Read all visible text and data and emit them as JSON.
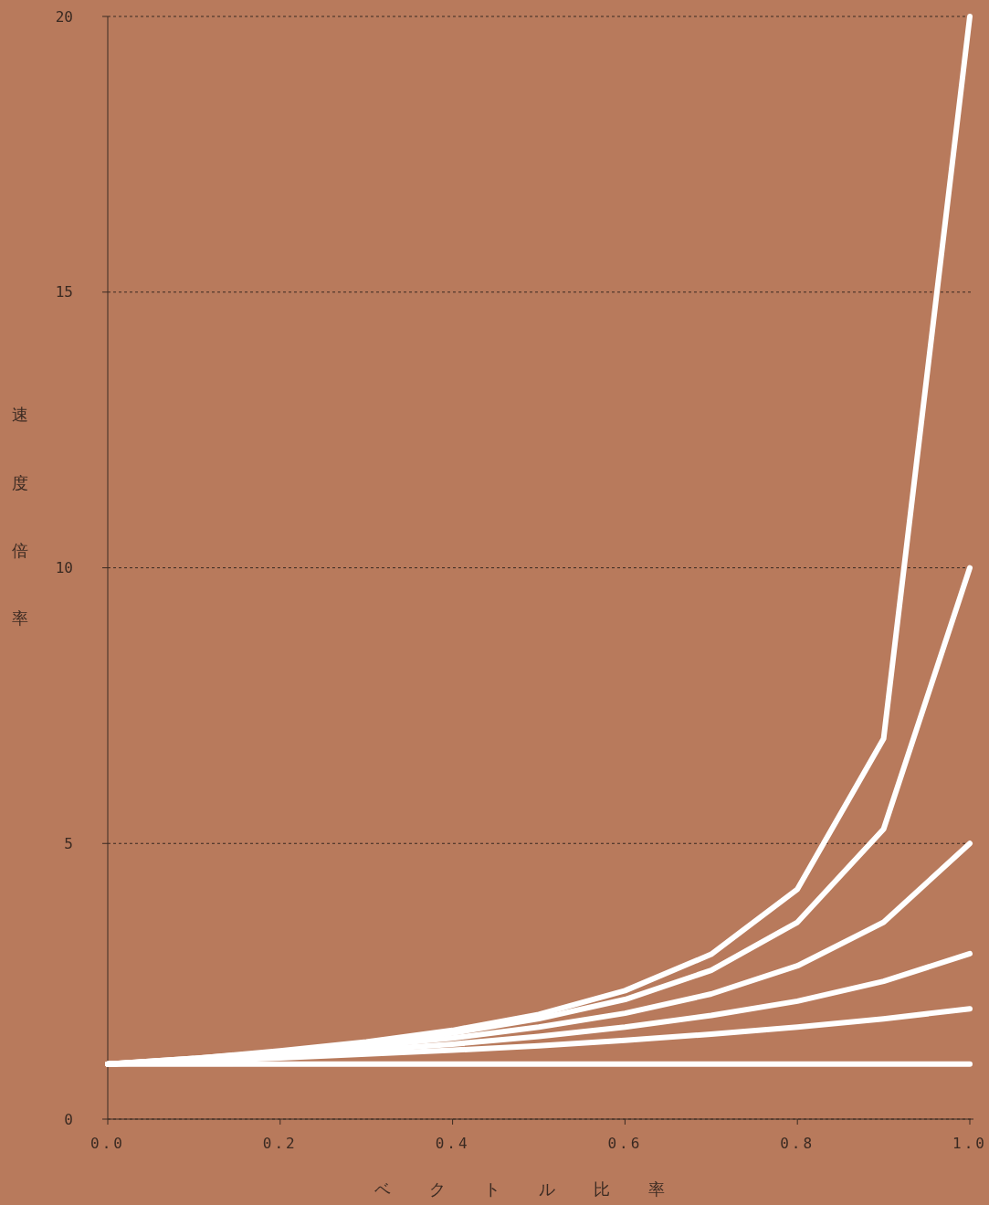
{
  "chart_data": {
    "type": "line",
    "xlabel": "ベクトル比率",
    "ylabel": "速度倍率",
    "x": [
      0,
      0.1,
      0.2,
      0.3,
      0.4,
      0.5,
      0.6,
      0.7,
      0.8,
      0.9,
      1.0
    ],
    "series": [
      {
        "color": "#ffffff",
        "values": [
          1,
          1.1,
          1.24,
          1.4,
          1.61,
          1.9,
          2.33,
          2.99,
          4.17,
          6.9,
          20
        ]
      },
      {
        "color": "#ffffff",
        "values": [
          1,
          1.1,
          1.22,
          1.37,
          1.56,
          1.82,
          2.17,
          2.7,
          3.57,
          5.26,
          10
        ]
      },
      {
        "color": "#ffffff",
        "values": [
          1,
          1.09,
          1.19,
          1.32,
          1.47,
          1.67,
          1.92,
          2.27,
          2.78,
          3.57,
          5
        ]
      },
      {
        "color": "#ffffff",
        "values": [
          1,
          1.07,
          1.15,
          1.25,
          1.36,
          1.5,
          1.67,
          1.88,
          2.14,
          2.5,
          3
        ]
      },
      {
        "color": "#ffffff",
        "values": [
          1,
          1.05,
          1.11,
          1.18,
          1.25,
          1.33,
          1.43,
          1.54,
          1.67,
          1.82,
          2
        ]
      },
      {
        "color": "#ffffff",
        "values": [
          1,
          1,
          1,
          1,
          1,
          1,
          1,
          1,
          1,
          1,
          1
        ]
      }
    ],
    "xlim": [
      0,
      1.0
    ],
    "xticks": [
      {
        "value": 0,
        "label": "0.0"
      },
      {
        "value": 0.2,
        "label": "0.2"
      },
      {
        "value": 0.4,
        "label": "0.4"
      },
      {
        "value": 0.6,
        "label": "0.6"
      },
      {
        "value": 0.8,
        "label": "0.8"
      },
      {
        "value": 1.0,
        "label": "1.0"
      }
    ],
    "ylim": [
      0,
      20
    ],
    "yticks": [
      0,
      5,
      10,
      15,
      20
    ],
    "grid": "y",
    "marker": "none",
    "line_style": "solid"
  }
}
